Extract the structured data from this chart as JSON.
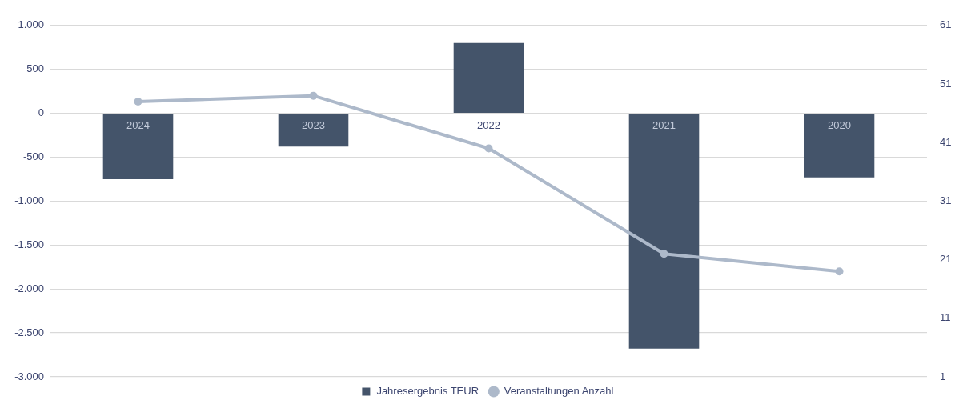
{
  "chart_data": {
    "type": "bar",
    "categories": [
      "2024",
      "2023",
      "2022",
      "2021",
      "2020"
    ],
    "series": [
      {
        "name": "Jahresergebnis TEUR",
        "color": "#44546a",
        "values": [
          -750,
          -380,
          800,
          -2680,
          -730
        ]
      },
      {
        "name": "Veranstaltungen Anzahl",
        "type": "line",
        "axis": "y2",
        "color": "#adb9ca",
        "values": [
          48,
          49,
          40,
          22,
          19
        ]
      }
    ],
    "ylim": [
      -3000,
      1000
    ],
    "yticks": [
      {
        "value": 1000,
        "label": "1.000"
      },
      500,
      0,
      -500,
      {
        "value": -1000,
        "label": "-1.000"
      },
      {
        "value": -1500,
        "label": "-1.500"
      },
      {
        "value": -2000,
        "label": "-2.000"
      },
      {
        "value": -2500,
        "label": "-2.500"
      },
      {
        "value": -3000,
        "label": "-3.000"
      }
    ],
    "y2lim": [
      1,
      61
    ],
    "y2ticks": [
      1,
      11,
      21,
      31,
      41,
      51,
      61
    ],
    "grid": "y",
    "legend": "bottom",
    "marker": "circle"
  }
}
